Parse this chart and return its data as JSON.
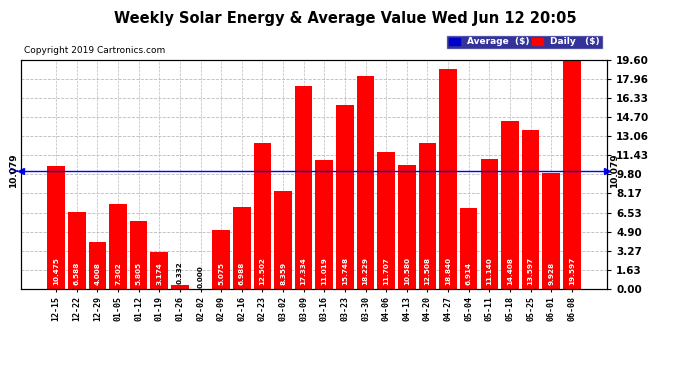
{
  "title": "Weekly Solar Energy & Average Value Wed Jun 12 20:05",
  "copyright": "Copyright 2019 Cartronics.com",
  "categories": [
    "12-15",
    "12-22",
    "12-29",
    "01-05",
    "01-12",
    "01-19",
    "01-26",
    "02-02",
    "02-09",
    "02-16",
    "02-23",
    "03-02",
    "03-09",
    "03-16",
    "03-23",
    "03-30",
    "04-06",
    "04-13",
    "04-20",
    "04-27",
    "05-04",
    "05-11",
    "05-18",
    "05-25",
    "06-01",
    "06-08"
  ],
  "values": [
    10.475,
    6.588,
    4.008,
    7.302,
    5.805,
    3.174,
    0.332,
    0.0,
    5.075,
    6.988,
    12.502,
    8.359,
    17.334,
    11.019,
    15.748,
    18.229,
    11.707,
    10.58,
    12.508,
    18.84,
    6.914,
    11.14,
    14.408,
    13.597,
    9.928,
    19.597
  ],
  "average": 10.079,
  "bar_color": "#FF0000",
  "average_line_color": "#0000FF",
  "background_color": "#FFFFFF",
  "plot_bg_color": "#FFFFFF",
  "grid_color": "#BBBBBB",
  "ylim": [
    0,
    19.6
  ],
  "yticks": [
    0.0,
    1.63,
    3.27,
    4.9,
    6.53,
    8.17,
    9.8,
    11.43,
    13.06,
    14.7,
    16.33,
    17.96,
    19.6
  ],
  "legend_avg_color": "#0000CC",
  "legend_daily_color": "#FF0000",
  "avg_label": "Average  ($)",
  "avg_str": "10.079"
}
